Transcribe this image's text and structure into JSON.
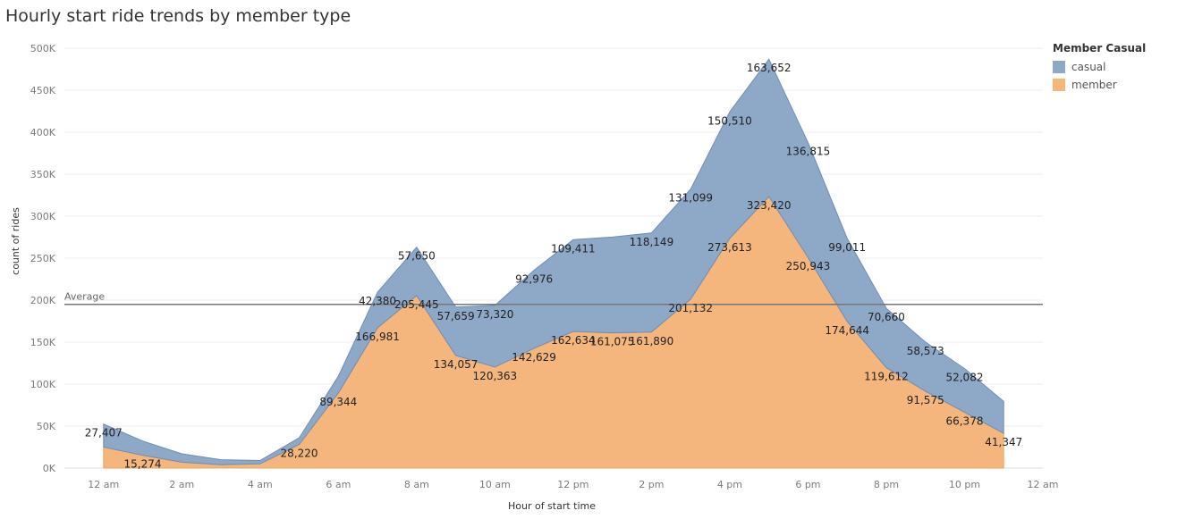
{
  "chart_data": {
    "type": "area",
    "stacked": true,
    "title": "Hourly start ride trends by member type",
    "xlabel": "Hour of start time",
    "ylabel": "count of rides",
    "ylim": [
      0,
      500000
    ],
    "yticks": [
      0,
      50000,
      100000,
      150000,
      200000,
      250000,
      300000,
      350000,
      400000,
      450000,
      500000
    ],
    "ytick_labels": [
      "0K",
      "50K",
      "100K",
      "150K",
      "200K",
      "250K",
      "300K",
      "350K",
      "400K",
      "450K",
      "500K"
    ],
    "xlim": [
      -1,
      24
    ],
    "xticks": [
      0,
      2,
      4,
      6,
      8,
      10,
      12,
      14,
      16,
      18,
      20,
      22,
      24
    ],
    "xtick_labels": [
      "12 am",
      "2 am",
      "4 am",
      "6 am",
      "8 am",
      "10 am",
      "12 pm",
      "2 pm",
      "4 pm",
      "6 pm",
      "8 pm",
      "10 pm",
      "12 am"
    ],
    "x": [
      0,
      1,
      2,
      3,
      4,
      5,
      6,
      7,
      8,
      9,
      10,
      11,
      12,
      13,
      14,
      15,
      16,
      17,
      18,
      19,
      20,
      21,
      22,
      23
    ],
    "legend": {
      "title": "Member Casual",
      "position": "right"
    },
    "series": [
      {
        "name": "member",
        "color": "#f4b67c",
        "values": [
          25000,
          15274,
          7000,
          4000,
          5000,
          28220,
          89344,
          166981,
          205445,
          134057,
          120363,
          142629,
          162634,
          161075,
          161890,
          201132,
          273613,
          323420,
          250943,
          174644,
          119612,
          91575,
          66378,
          41347
        ],
        "labels": [
          "",
          "15,274",
          "",
          "",
          "",
          "28,220",
          "89,344",
          "166,981",
          "205,445",
          "134,057",
          "120,363",
          "142,629",
          "162,634",
          "161,075",
          "161,890",
          "201,132",
          "273,613",
          "323,420",
          "250,943",
          "174,644",
          "119,612",
          "91,575",
          "66,378",
          "41,347"
        ]
      },
      {
        "name": "casual",
        "color": "#8ea8c7",
        "values": [
          27407,
          17000,
          10000,
          6000,
          4000,
          8000,
          20000,
          42380,
          57650,
          57659,
          73320,
          92976,
          109411,
          114000,
          118149,
          131099,
          150510,
          163652,
          136815,
          99011,
          70660,
          58573,
          52082,
          38000
        ],
        "labels": [
          "27,407",
          "",
          "",
          "",
          "",
          "",
          "",
          "42,380",
          "57,650",
          "57,659",
          "73,320",
          "92,976",
          "109,411",
          "",
          "118,149",
          "131,099",
          "150,510",
          "163,652",
          "136,815",
          "99,011",
          "70,660",
          "58,573",
          "52,082",
          ""
        ]
      }
    ],
    "reference_line": {
      "label": "Average",
      "value": 195000
    },
    "grid": true
  }
}
